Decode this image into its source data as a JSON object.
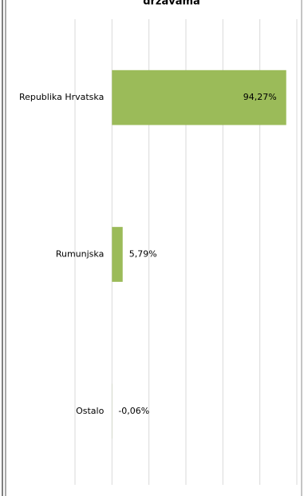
{
  "chart_data": {
    "type": "bar",
    "orientation": "horizontal",
    "title": "državama",
    "categories": [
      "Republika Hrvatska",
      "Rumunjska",
      "Ostalo"
    ],
    "values": [
      94.27,
      5.79,
      -0.06
    ],
    "value_labels": [
      "94,27%",
      "5,79%",
      "-0,06%"
    ],
    "color": "#9bbb59",
    "xlim": [
      -20,
      100
    ],
    "xticks": [
      -20,
      0,
      20,
      40,
      60,
      80,
      100
    ],
    "grid": true
  }
}
